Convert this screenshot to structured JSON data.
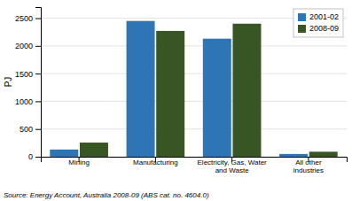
{
  "chart_data": {
    "type": "bar",
    "categories": [
      "Mining",
      "Manufacturing",
      "Electricity, Gas, Water\nand Waste",
      "All other\nindustries"
    ],
    "series": [
      {
        "name": "2001-02",
        "color": "#2E75B6",
        "values": [
          130,
          2450,
          2130,
          50
        ]
      },
      {
        "name": "2008-09",
        "color": "#375623",
        "values": [
          255,
          2270,
          2400,
          90
        ]
      }
    ],
    "ylabel": "PJ",
    "ylim": [
      0,
      2700
    ],
    "yticks": [
      0,
      500,
      1000,
      1500,
      2000,
      2500
    ],
    "grid": true,
    "legend": "upper right",
    "annotations": [
      "Source: Energy Account, Australia 2008-09 (ABS cat. no. 4604.0)"
    ]
  }
}
